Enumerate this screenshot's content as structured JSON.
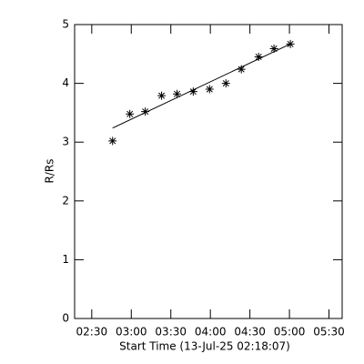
{
  "chart_data": {
    "type": "scatter",
    "x_label": "Start Time (13-Jul-25 02:18:07)",
    "y_label": "R/Rs",
    "x": [
      165.8,
      178.9,
      190.6,
      203,
      214.7,
      227,
      239.4,
      251.8,
      263.5,
      276.6,
      288.3,
      300.7
    ],
    "values": [
      3.02,
      3.48,
      3.52,
      3.79,
      3.82,
      3.86,
      3.9,
      4.0,
      4.24,
      4.45,
      4.59,
      4.67
    ],
    "color": "#000000",
    "fit": {
      "x": [
        165.8,
        300.7
      ],
      "values": [
        3.24,
        4.67
      ]
    },
    "xlim": [
      137,
      340
    ],
    "ylim": [
      0,
      5
    ],
    "xticks": [
      {
        "value": 150,
        "label": "02:30"
      },
      {
        "value": 180,
        "label": "03:00"
      },
      {
        "value": 210,
        "label": "03:30"
      },
      {
        "value": 240,
        "label": "04:00"
      },
      {
        "value": 270,
        "label": "04:30"
      },
      {
        "value": 300,
        "label": "05:00"
      },
      {
        "value": 330,
        "label": "05:30"
      }
    ],
    "yticks": [
      0,
      1,
      2,
      3,
      4,
      5
    ]
  }
}
